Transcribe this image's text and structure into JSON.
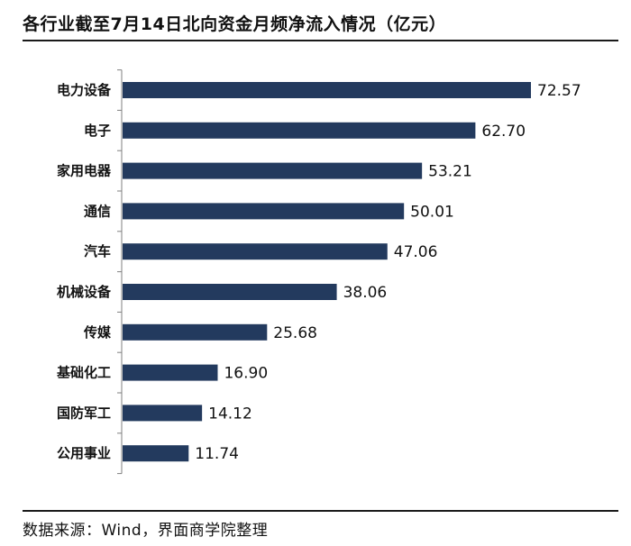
{
  "header": {
    "title": "各行业截至7月14日北向资金月频净流入情况（亿元）"
  },
  "footer": {
    "source": "数据来源：Wind，界面商学院整理"
  },
  "colors": {
    "bar": "#233a5e",
    "axis": "#7f7f7f"
  },
  "chart_data": {
    "type": "bar",
    "orientation": "horizontal",
    "title": "各行业截至7月14日北向资金月频净流入情况（亿元）",
    "categories": [
      "电力设备",
      "电子",
      "家用电器",
      "通信",
      "汽车",
      "机械设备",
      "传媒",
      "基础化工",
      "国防军工",
      "公用事业"
    ],
    "values": [
      72.57,
      62.7,
      53.21,
      50.01,
      47.06,
      38.06,
      25.68,
      16.9,
      14.12,
      11.74
    ],
    "value_labels": [
      "72.57",
      "62.70",
      "53.21",
      "50.01",
      "47.06",
      "38.06",
      "25.68",
      "16.90",
      "14.12",
      "11.74"
    ],
    "xlabel": "",
    "ylabel": "",
    "xlim": [
      0,
      72.57
    ],
    "grid": false,
    "legend": "none"
  }
}
